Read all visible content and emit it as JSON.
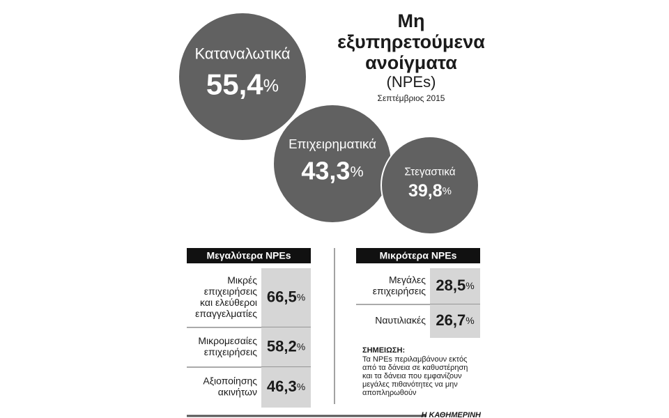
{
  "title": {
    "lines": [
      "Μη",
      "εξυπηρετούμενα",
      "ανοίγματα"
    ],
    "abbr": "(NPEs)",
    "date": "Σεπτέμβριος 2015"
  },
  "unit": "%",
  "bubbles": [
    {
      "label": "Καταναλωτικά",
      "value": "55,4"
    },
    {
      "label": "Επιχειρηματικά",
      "value": "43,3"
    },
    {
      "label": "Στεγαστικά",
      "value": "39,8"
    }
  ],
  "tables": [
    {
      "header": "Μεγαλύτερα NPEs",
      "rows": [
        {
          "label": [
            "Μικρές",
            "επιχειρήσεις",
            "και ελεύθεροι",
            "επαγγελματίες"
          ],
          "value": "66,5"
        },
        {
          "label": [
            "Μικρομεσαίες",
            "επιχειρήσεις"
          ],
          "value": "58,2"
        },
        {
          "label": [
            "Αξιοποίησης",
            "ακινήτων"
          ],
          "value": "46,3"
        }
      ]
    },
    {
      "header": "Μικρότερα NPEs",
      "rows": [
        {
          "label": [
            "Μεγάλες",
            "επιχειρήσεις"
          ],
          "value": "28,5"
        },
        {
          "label": [
            "Ναυτιλιακές"
          ],
          "value": "26,7"
        }
      ]
    }
  ],
  "note": {
    "title": "ΣΗΜΕΙΩΣΗ:",
    "lines": [
      "Τα NPEs περιλαμβάνουν εκτός",
      "από τα δάνεια σε καθυστέρηση",
      "και τα δάνεια που εμφανίζουν",
      "μεγάλες πιθανότητες να μην",
      "αποπληρωθούν"
    ]
  },
  "source": "Η ΚΑΘΗΜΕΡΙΝΗ"
}
